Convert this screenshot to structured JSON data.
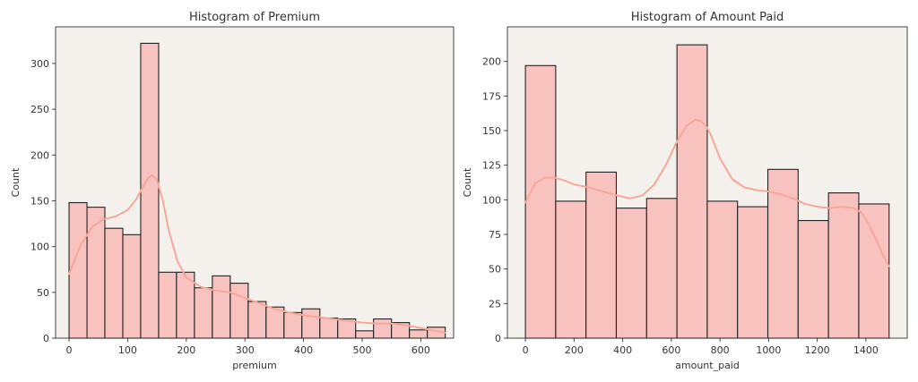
{
  "chart_data": [
    {
      "type": "bar",
      "title": "Histogram of Premium",
      "xlabel": "premium",
      "ylabel": "Count",
      "xlim": [
        -23,
        656
      ],
      "ylim": [
        0,
        340
      ],
      "x_ticks": [
        0,
        100,
        200,
        300,
        400,
        500,
        600
      ],
      "y_ticks": [
        0,
        50,
        100,
        150,
        200,
        250,
        300
      ],
      "bin_edges": [
        0,
        30.6,
        61.1,
        91.7,
        122.2,
        152.8,
        183.3,
        213.9,
        244.4,
        275,
        305.6,
        336.1,
        366.7,
        397.2,
        427.8,
        458.3,
        488.9,
        519.4,
        550,
        580.6,
        611.1,
        641.7
      ],
      "values": [
        148,
        143,
        120,
        113,
        322,
        72,
        72,
        55,
        68,
        60,
        40,
        34,
        28,
        32,
        22,
        21,
        8,
        21,
        17,
        9,
        12
      ],
      "kde": {
        "x": [
          0,
          20,
          40,
          60,
          80,
          100,
          115,
          125,
          135,
          142,
          150,
          160,
          170,
          185,
          200,
          225,
          250,
          275,
          300,
          325,
          350,
          375,
          400,
          425,
          450,
          475,
          500,
          525,
          550,
          575,
          600,
          625,
          642
        ],
        "y": [
          70,
          102,
          122,
          130,
          133,
          140,
          152,
          164,
          175,
          178,
          173,
          150,
          118,
          84,
          66,
          56,
          52,
          50,
          44,
          38,
          32,
          28,
          25,
          23,
          21,
          19,
          17,
          16,
          16,
          14,
          11,
          8,
          6
        ]
      },
      "colors": {
        "bar_fill": "#f8c2be",
        "bar_edge": "#222222",
        "kde": "#f6a79a",
        "plot_bg": "#f4f1ed"
      },
      "grid": false,
      "legend": "none"
    },
    {
      "type": "bar",
      "title": "Histogram of Amount Paid",
      "xlabel": "amount_paid",
      "ylabel": "Count",
      "xlim": [
        -74,
        1570
      ],
      "ylim": [
        0,
        225
      ],
      "x_ticks": [
        0,
        200,
        400,
        600,
        800,
        1000,
        1200,
        1400
      ],
      "y_ticks": [
        0,
        25,
        50,
        75,
        100,
        125,
        150,
        175,
        200
      ],
      "bin_edges": [
        0,
        124.6,
        249.2,
        373.8,
        498.5,
        623.1,
        747.7,
        872.3,
        996.9,
        1121.5,
        1246.2,
        1370.8,
        1495.4
      ],
      "values": [
        197,
        99,
        120,
        94,
        101,
        212,
        99,
        95,
        122,
        85,
        105,
        97
      ],
      "kde": {
        "x": [
          0,
          40,
          80,
          120,
          160,
          200,
          260,
          320,
          380,
          430,
          480,
          530,
          580,
          620,
          660,
          700,
          720,
          740,
          760,
          800,
          850,
          900,
          950,
          1000,
          1050,
          1100,
          1150,
          1200,
          1250,
          1300,
          1350,
          1380,
          1410,
          1440,
          1470,
          1495
        ],
        "y": [
          98,
          112,
          116,
          116,
          114,
          111,
          109,
          106,
          103,
          101,
          103,
          111,
          126,
          141,
          153,
          158,
          157,
          154,
          148,
          130,
          115,
          109,
          107,
          106,
          104,
          101,
          97,
          95,
          94,
          95,
          94,
          91,
          83,
          72,
          60,
          52
        ]
      },
      "colors": {
        "bar_fill": "#f8c2be",
        "bar_edge": "#222222",
        "kde": "#f6a79a",
        "plot_bg": "#f4f1ed"
      },
      "grid": false,
      "legend": "none"
    }
  ]
}
